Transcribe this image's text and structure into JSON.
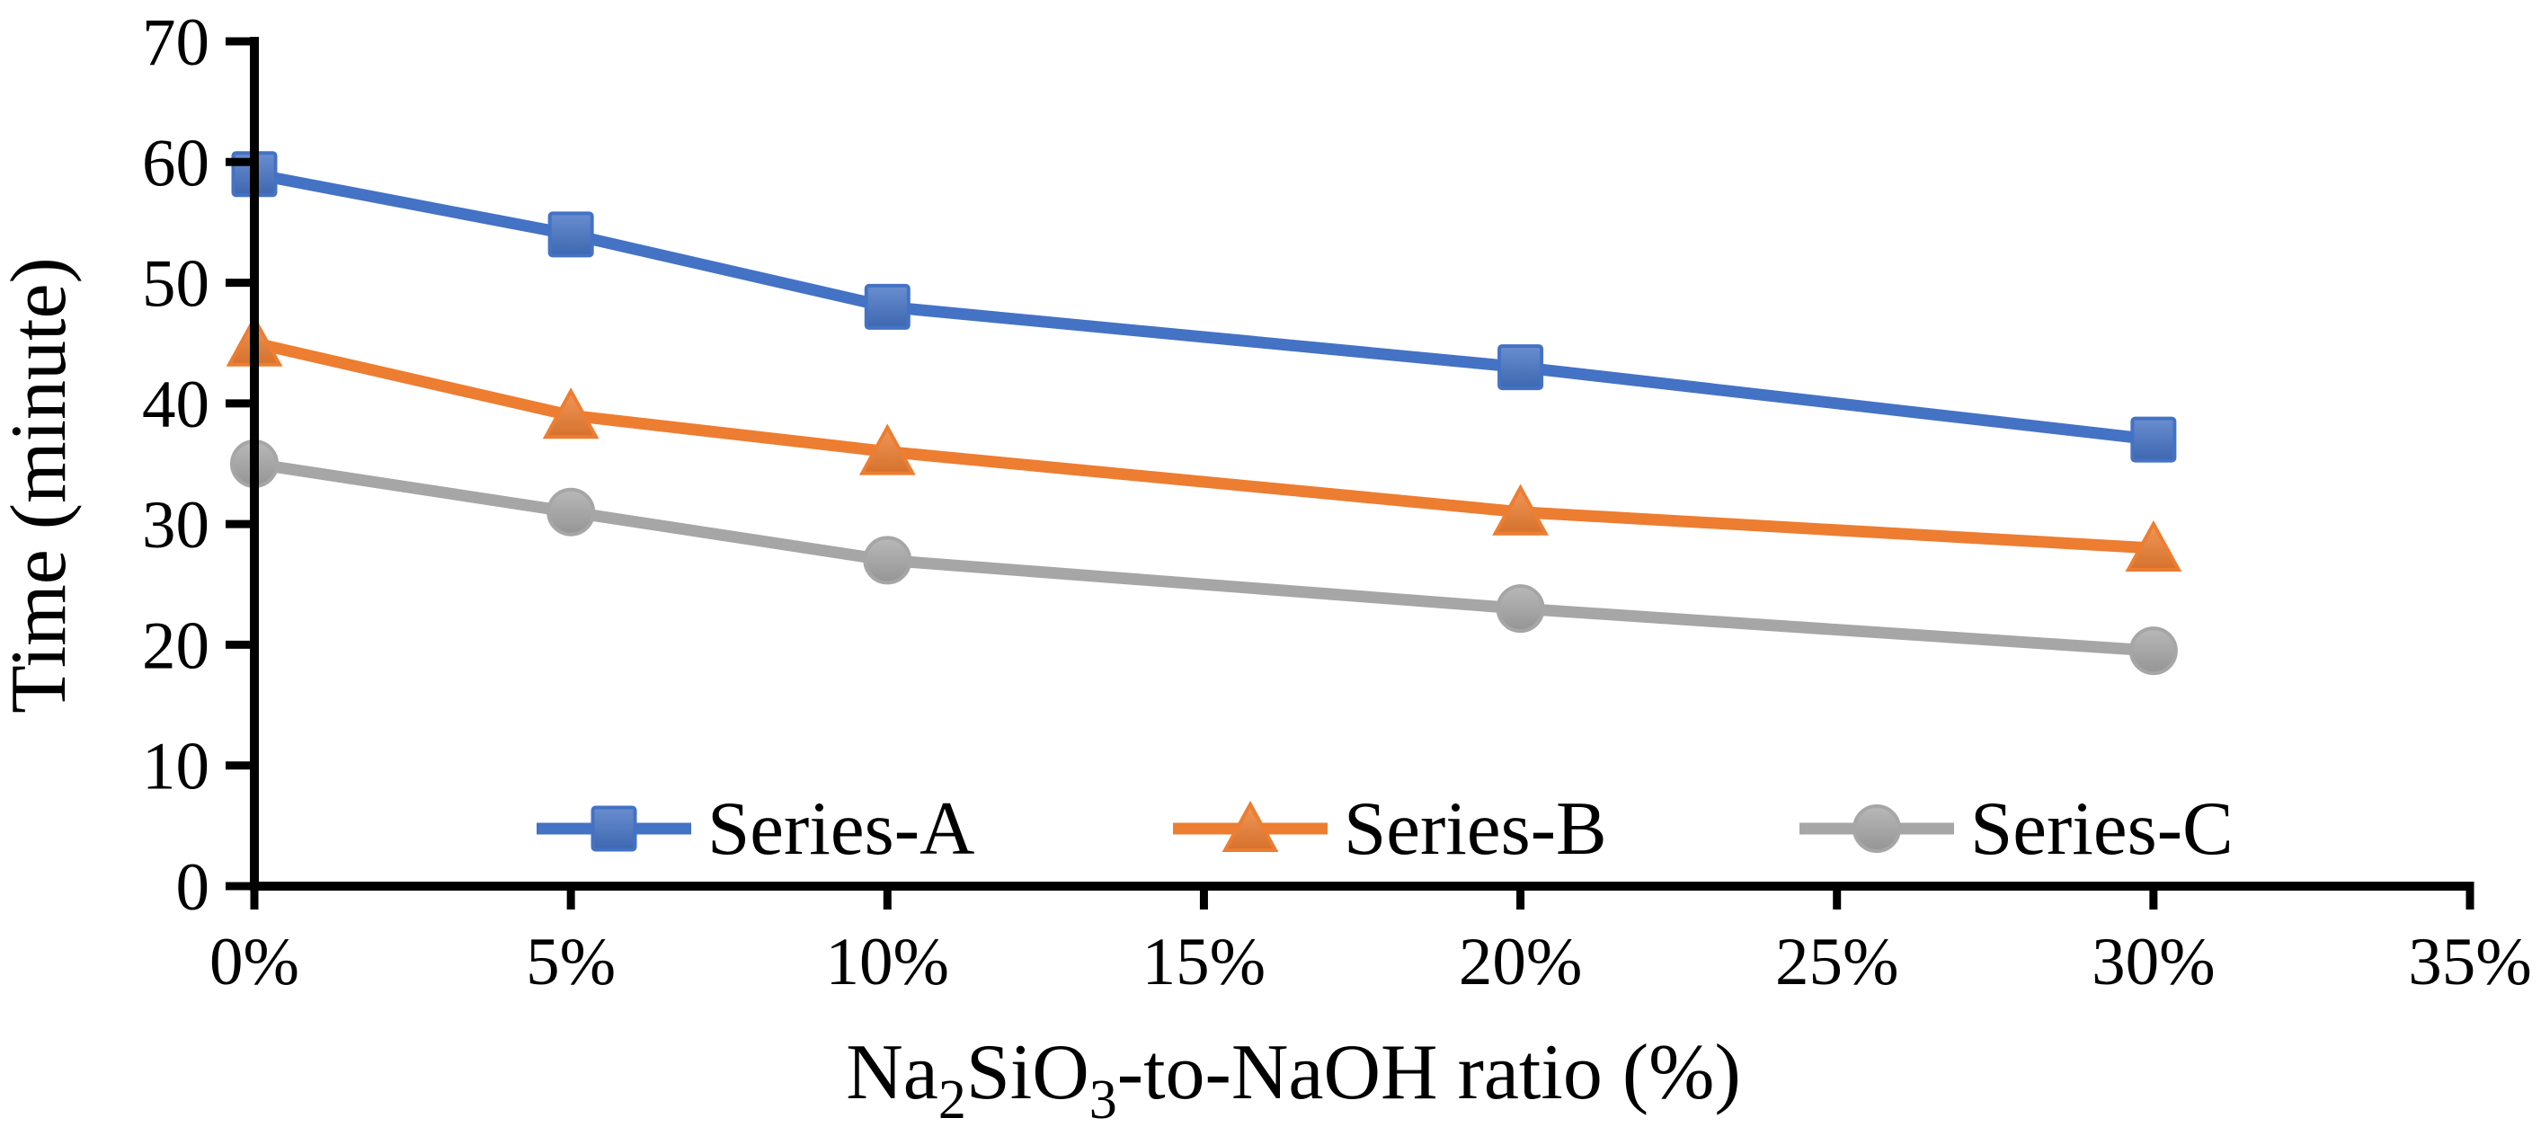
{
  "chart_data": {
    "type": "line",
    "title": "",
    "xlabel": "Na2SiO3-to-NaOH ratio (%)",
    "xlabel_rich": [
      {
        "t": "Na",
        "sub": false
      },
      {
        "t": "2",
        "sub": true
      },
      {
        "t": "SiO",
        "sub": false
      },
      {
        "t": "3",
        "sub": true
      },
      {
        "t": "-to-NaOH ratio (%)",
        "sub": false
      }
    ],
    "ylabel": "Time (minute)",
    "x": [
      0,
      5,
      10,
      20,
      30
    ],
    "series": [
      {
        "name": "Series-A",
        "marker": "square",
        "color": "#4472C4",
        "values": [
          59,
          54,
          48,
          43,
          37
        ]
      },
      {
        "name": "Series-B",
        "marker": "triangle",
        "color": "#ED7D31",
        "values": [
          45,
          39,
          36,
          31,
          28
        ]
      },
      {
        "name": "Series-C",
        "marker": "circle",
        "color": "#A6A6A6",
        "values": [
          35,
          31,
          27,
          23,
          19.5
        ]
      }
    ],
    "xlim": [
      0,
      35
    ],
    "ylim": [
      0,
      70
    ],
    "xticks": [
      "0%",
      "5%",
      "10%",
      "15%",
      "20%",
      "25%",
      "30%",
      "35%"
    ],
    "xtick_values": [
      0,
      5,
      10,
      15,
      20,
      25,
      30,
      35
    ],
    "yticks": [
      "0",
      "10",
      "20",
      "30",
      "40",
      "50",
      "60",
      "70"
    ],
    "ytick_values": [
      0,
      10,
      20,
      30,
      40,
      50,
      60,
      70
    ],
    "grid": false,
    "legend_position": "inside-bottom",
    "axis_color": "#000000",
    "background": "#FFFFFF"
  }
}
